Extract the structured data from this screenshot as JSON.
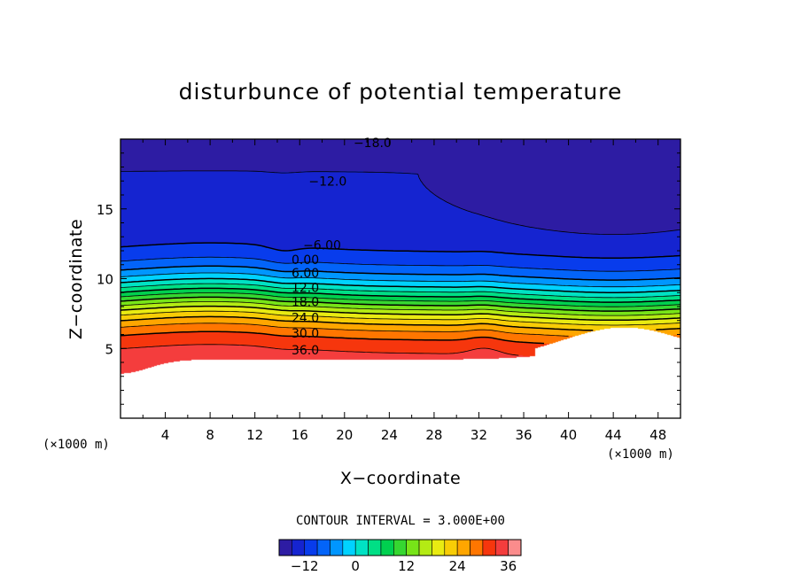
{
  "chart_data": {
    "type": "contour",
    "title": "disturbunce of potential temperature",
    "xlabel": "X−coordinate",
    "ylabel": "Z−coordinate",
    "x_unit_label": "(×1000 m)",
    "y_unit_label": "(×1000 m)",
    "xlim": [
      0,
      50
    ],
    "ylim": [
      0,
      20
    ],
    "x_ticks": [
      4,
      8,
      12,
      16,
      20,
      24,
      28,
      32,
      36,
      40,
      44,
      48
    ],
    "x_tick_labels": [
      "4",
      "8",
      "12",
      "16",
      "20",
      "24",
      "28",
      "32",
      "36",
      "40",
      "44",
      "48"
    ],
    "y_ticks": [
      5,
      10,
      15
    ],
    "y_tick_labels": [
      "5",
      "10",
      "15"
    ],
    "contour_interval_text": "CONTOUR INTERVAL = 3.000E+00",
    "contour_interval": 3,
    "levels": [
      -18,
      -15,
      -12,
      -9,
      -6,
      -3,
      0,
      3,
      6,
      9,
      12,
      15,
      18,
      21,
      24,
      27,
      30,
      33,
      36,
      39
    ],
    "labeled_contours": [
      {
        "text": "−18.0",
        "value": -18,
        "x": 22.5,
        "z": 19.75
      },
      {
        "text": "−12.0",
        "value": -12,
        "x": 18.5,
        "z": 17.0
      },
      {
        "text": "−6.00",
        "value": -6,
        "x": 18.0,
        "z": 12.4
      },
      {
        "text": "0.00",
        "value": 0,
        "x": 16.5,
        "z": 11.35
      },
      {
        "text": "6.00",
        "value": 6,
        "x": 16.5,
        "z": 10.4
      },
      {
        "text": "12.0",
        "value": 12,
        "x": 16.5,
        "z": 9.35
      },
      {
        "text": "18.0",
        "value": 18,
        "x": 16.5,
        "z": 8.35
      },
      {
        "text": "24.0",
        "value": 24,
        "x": 16.5,
        "z": 7.2
      },
      {
        "text": "30.0",
        "value": 30,
        "x": 16.5,
        "z": 6.1
      },
      {
        "text": "36.0",
        "value": 36,
        "x": 16.5,
        "z": 4.9
      }
    ],
    "colorbar": {
      "range": [
        -18,
        39
      ],
      "tick_values": [
        -12,
        0,
        12,
        24,
        36
      ],
      "tick_labels": [
        "−12",
        "0",
        "12",
        "24",
        "36"
      ]
    },
    "negative_contours": "dashed",
    "grid": false,
    "legend": "colorbar-bottom"
  }
}
